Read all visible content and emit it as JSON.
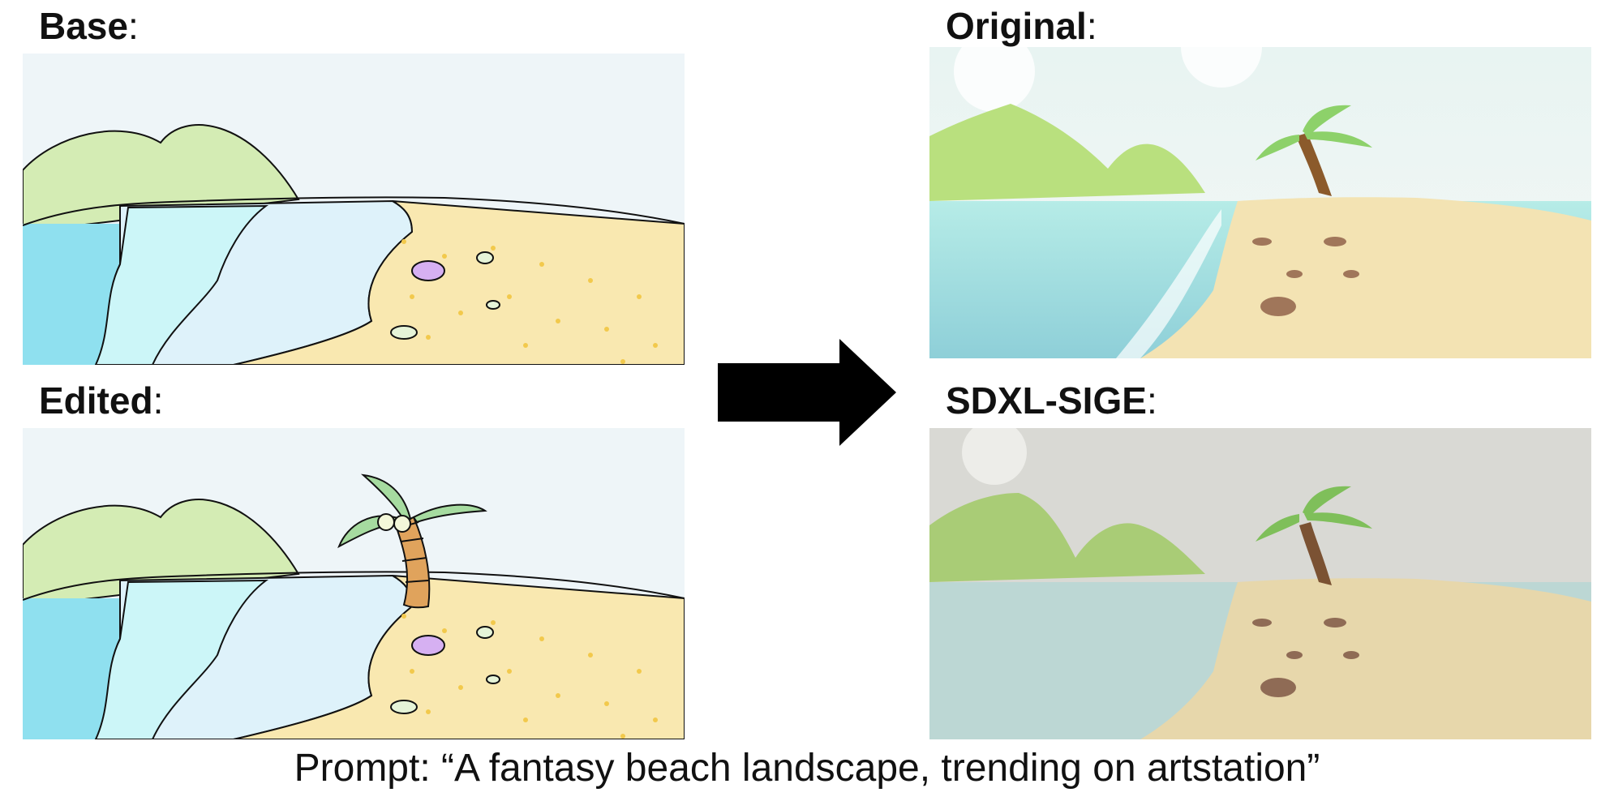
{
  "labels": {
    "base": "Base",
    "edited": "Edited",
    "original": "Original",
    "sdxl_sige": "SDXL-SIGE",
    "colon": ":"
  },
  "prompt": "Prompt: “A fantasy beach landscape, trending on artstation”",
  "colors": {
    "sketch_sky": "#eef5f8",
    "sketch_hill": "#d4ecb4",
    "sketch_water_deep": "#8fe0ef",
    "sketch_water_mid": "#ccf6f8",
    "sketch_water_light": "#def2fa",
    "sketch_sand": "#f9e8b0",
    "sketch_dots": "#f2c94c",
    "sketch_palm_trunk": "#e0a35c",
    "sketch_palm_leaf": "#a6dba0",
    "render_sand": "#f3e3b3",
    "render_water": "#aee2e6",
    "render_hill": "#b9e07e",
    "sige_tint": "#d9d9d4",
    "arrow": "#000000"
  },
  "icons": {
    "arrow": "right-arrow-icon"
  }
}
